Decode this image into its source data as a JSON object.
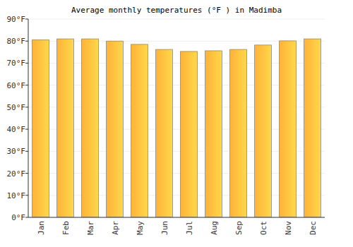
{
  "chart_data": {
    "type": "bar",
    "title": "Average monthly temperatures (°F ) in Madimba",
    "categories": [
      "Jan",
      "Feb",
      "Mar",
      "Apr",
      "May",
      "Jun",
      "Jul",
      "Aug",
      "Sep",
      "Oct",
      "Nov",
      "Dec"
    ],
    "values": [
      80.6,
      81,
      81,
      80,
      78.5,
      76.2,
      75.3,
      75.6,
      76.2,
      78.2,
      80.1,
      81
    ],
    "color": "#ffb238",
    "ylim": [
      0,
      90
    ],
    "yticks": [
      {
        "value": 0,
        "label": "0°F"
      },
      {
        "value": 10,
        "label": "10°F"
      },
      {
        "value": 20,
        "label": "20°F"
      },
      {
        "value": 30,
        "label": "30°F"
      },
      {
        "value": 40,
        "label": "40°F"
      },
      {
        "value": 50,
        "label": "50°F"
      },
      {
        "value": 60,
        "label": "60°F"
      },
      {
        "value": 70,
        "label": "70°F"
      },
      {
        "value": 80,
        "label": "80°F"
      },
      {
        "value": 90,
        "label": "90°F"
      }
    ],
    "grid": true
  }
}
